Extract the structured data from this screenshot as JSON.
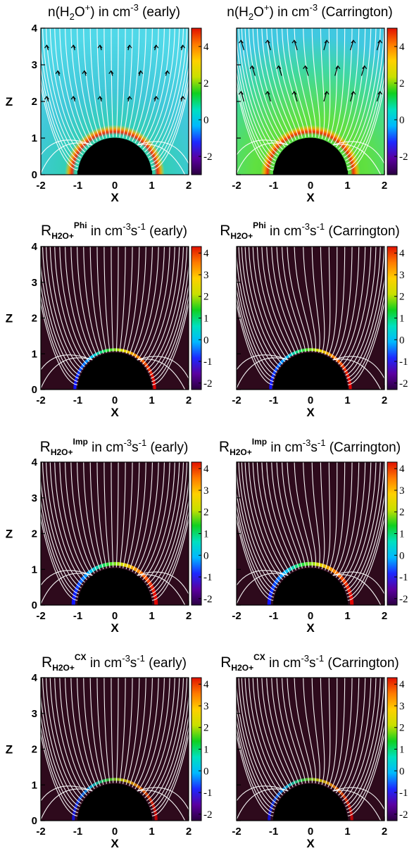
{
  "colors": {
    "background_dark": "#2e0a1c",
    "planet": "#000000",
    "field_lines": "#ffffff",
    "colorbar": [
      "#2a0040",
      "#5a00a0",
      "#1d28ff",
      "#00b8ff",
      "#00e0c0",
      "#10d020",
      "#c8e000",
      "#ffd000",
      "#ff7a00",
      "#e01000"
    ]
  },
  "chart_data": [
    {
      "type": "heatmap",
      "title": "n(H₂O⁺) in cm⁻³ (early)",
      "quantity": "n(H2O+)",
      "units": "cm^-3",
      "case": "early",
      "xlabel": "X",
      "ylabel": "Z",
      "xlim": [
        -2,
        2
      ],
      "ylim": [
        0,
        4
      ],
      "xticks": [
        "-2",
        "-1",
        "0",
        "1",
        "2"
      ],
      "yticks": [
        "0",
        "1",
        "2",
        "3",
        "4"
      ],
      "colorbar_ticks": [
        "4",
        "2",
        "0",
        "-2"
      ],
      "colorbar_range": [
        -3,
        5
      ],
      "grid": false,
      "overlay": "white magnetic field lines with black velocity arrows"
    },
    {
      "type": "heatmap",
      "title": "n(H₂O⁺) in cm⁻³ (Carrington)",
      "quantity": "n(H2O+)",
      "units": "cm^-3",
      "case": "Carrington",
      "xlabel": "X",
      "ylabel": "",
      "xlim": [
        -2,
        2
      ],
      "ylim": [
        0,
        4
      ],
      "xticks": [
        "-2",
        "-1",
        "0",
        "1",
        "2"
      ],
      "yticks": [],
      "colorbar_ticks": [
        "4",
        "2",
        "0",
        "-2"
      ],
      "colorbar_range": [
        -3,
        5
      ],
      "grid": false,
      "overlay": "white magnetic field lines with black velocity arrows"
    },
    {
      "type": "heatmap",
      "title": "R_H2O+^Phi in cm⁻³s⁻¹ (early)",
      "quantity": "R_H2O+ Phi",
      "units": "cm^-3 s^-1",
      "case": "early",
      "xlabel": "X",
      "ylabel": "Z",
      "xlim": [
        -2,
        2
      ],
      "ylim": [
        0,
        4
      ],
      "xticks": [
        "-2",
        "-1",
        "0",
        "1",
        "2"
      ],
      "yticks": [
        "0",
        "1",
        "2",
        "3",
        "4"
      ],
      "colorbar_ticks": [
        "4",
        "3",
        "2",
        "1",
        "0",
        "-1",
        "-2"
      ],
      "colorbar_range": [
        -2.3,
        4.3
      ],
      "grid": false,
      "overlay": "white magnetic field lines"
    },
    {
      "type": "heatmap",
      "title": "R_H2O+^Phi in cm⁻³s⁻¹ (Carrington)",
      "quantity": "R_H2O+ Phi",
      "units": "cm^-3 s^-1",
      "case": "Carrington",
      "xlabel": "X",
      "ylabel": "",
      "xlim": [
        -2,
        2
      ],
      "ylim": [
        0,
        4
      ],
      "xticks": [
        "-2",
        "-1",
        "0",
        "1",
        "2"
      ],
      "yticks": [],
      "colorbar_ticks": [
        "4",
        "3",
        "2",
        "1",
        "0",
        "-1",
        "-2"
      ],
      "colorbar_range": [
        -2.3,
        4.3
      ],
      "grid": false,
      "overlay": "white magnetic field lines"
    },
    {
      "type": "heatmap",
      "title": "R_H2O+^Imp in cm⁻³s⁻¹ (early)",
      "quantity": "R_H2O+ Imp",
      "units": "cm^-3 s^-1",
      "case": "early",
      "xlabel": "X",
      "ylabel": "Z",
      "xlim": [
        -2,
        2
      ],
      "ylim": [
        0,
        4
      ],
      "xticks": [
        "-2",
        "-1",
        "0",
        "1",
        "2"
      ],
      "yticks": [
        "0",
        "1",
        "2",
        "3",
        "4"
      ],
      "colorbar_ticks": [
        "4",
        "3",
        "2",
        "1",
        "0",
        "-1",
        "-2"
      ],
      "colorbar_range": [
        -2.3,
        4.3
      ],
      "grid": false,
      "overlay": "white magnetic field lines"
    },
    {
      "type": "heatmap",
      "title": "R_H2O+^Imp in cm⁻³s⁻¹ (Carrington)",
      "quantity": "R_H2O+ Imp",
      "units": "cm^-3 s^-1",
      "case": "Carrington",
      "xlabel": "X",
      "ylabel": "",
      "xlim": [
        -2,
        2
      ],
      "ylim": [
        0,
        4
      ],
      "xticks": [
        "-2",
        "-1",
        "0",
        "1",
        "2"
      ],
      "yticks": [],
      "colorbar_ticks": [
        "4",
        "3",
        "2",
        "1",
        "0",
        "-1",
        "-2"
      ],
      "colorbar_range": [
        -2.3,
        4.3
      ],
      "grid": false,
      "overlay": "white magnetic field lines"
    },
    {
      "type": "heatmap",
      "title": "R_H2O+^CX in cm⁻³s⁻¹ (early)",
      "quantity": "R_H2O+ CX",
      "units": "cm^-3 s^-1",
      "case": "early",
      "xlabel": "X",
      "ylabel": "Z",
      "xlim": [
        -2,
        2
      ],
      "ylim": [
        0,
        4
      ],
      "xticks": [
        "-2",
        "-1",
        "0",
        "1",
        "2"
      ],
      "yticks": [
        "0",
        "1",
        "2",
        "3",
        "4"
      ],
      "colorbar_ticks": [
        "4",
        "3",
        "2",
        "1",
        "0",
        "-1",
        "-2"
      ],
      "colorbar_range": [
        -2.3,
        4.3
      ],
      "grid": false,
      "overlay": "white magnetic field lines"
    },
    {
      "type": "heatmap",
      "title": "R_H2O+^CX in cm⁻³s⁻¹ (Carrington)",
      "quantity": "R_H2O+ CX",
      "units": "cm^-3 s^-1",
      "case": "Carrington",
      "xlabel": "X",
      "ylabel": "",
      "xlim": [
        -2,
        2
      ],
      "ylim": [
        0,
        4
      ],
      "xticks": [
        "-2",
        "-1",
        "0",
        "1",
        "2"
      ],
      "yticks": [],
      "colorbar_ticks": [
        "4",
        "3",
        "2",
        "1",
        "0",
        "-1",
        "-2"
      ],
      "colorbar_range": [
        -2.3,
        4.3
      ],
      "grid": false,
      "overlay": "white magnetic field lines"
    }
  ],
  "titles": [
    {
      "pre": "n(H",
      "sub1": "2",
      "mid": "O",
      "sup1": "+",
      "post": ") in cm",
      "sup2": "-3",
      "tail": " (early)"
    },
    {
      "pre": "n(H",
      "sub1": "2",
      "mid": "O",
      "sup1": "+",
      "post": ") in cm",
      "sup2": "-3",
      "tail": " (Carrington)"
    },
    {
      "R": "R",
      "sub": "H2O+",
      "sup": "Phi",
      "unit": " in cm",
      "e1": "-3",
      "s": "s",
      "e2": "-1",
      "tail": " (early)"
    },
    {
      "R": "R",
      "sub": "H2O+",
      "sup": "Phi",
      "unit": " in cm",
      "e1": "-3",
      "s": "s",
      "e2": "-1",
      "tail": " (Carrington)"
    },
    {
      "R": "R",
      "sub": "H2O+",
      "sup": "Imp",
      "unit": " in cm",
      "e1": "-3",
      "s": "s",
      "e2": "-1",
      "tail": " (early)"
    },
    {
      "R": "R",
      "sub": "H2O+",
      "sup": "Imp",
      "unit": " in cm",
      "e1": "-3",
      "s": "s",
      "e2": "-1",
      "tail": " (Carrington)"
    },
    {
      "R": "R",
      "sub": "H2O+",
      "sup": "CX",
      "unit": " in cm",
      "e1": "-3",
      "s": "s",
      "e2": "-1",
      "tail": " (early)"
    },
    {
      "R": "R",
      "sub": "H2O+",
      "sup": "CX",
      "unit": " in cm",
      "e1": "-3",
      "s": "s",
      "e2": "-1",
      "tail": " (Carrington)"
    }
  ]
}
